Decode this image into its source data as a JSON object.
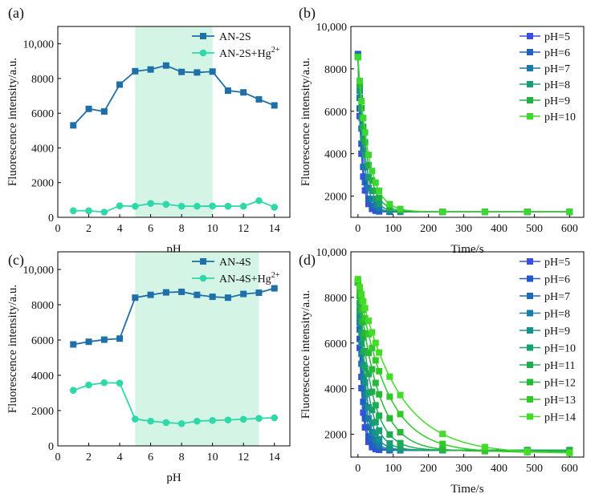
{
  "chart_data": [
    {
      "id": "a",
      "tag": "(a)",
      "type": "line",
      "xlabel": "pH",
      "ylabel": "Fluorescence intensity/a.u.",
      "xlim": [
        0,
        15
      ],
      "ylim": [
        0,
        11000
      ],
      "xticks": [
        0,
        2,
        4,
        6,
        8,
        10,
        12,
        14
      ],
      "yticks": [
        0,
        2000,
        4000,
        6000,
        8000,
        10000
      ],
      "ytick_labels": [
        "0",
        "2000",
        "4000",
        "6000",
        "8000",
        "10,000"
      ],
      "shaded_range": [
        5,
        10
      ],
      "shade_color": "#d4f5e6",
      "legend_position": "top-right",
      "series": [
        {
          "name": "AN-2S",
          "color": "#1f6fa8",
          "marker": "square",
          "x": [
            1,
            2,
            3,
            4,
            5,
            6,
            7,
            8,
            9,
            10,
            11,
            12,
            13,
            14
          ],
          "y": [
            5300,
            6250,
            6100,
            7650,
            8420,
            8520,
            8750,
            8380,
            8350,
            8400,
            7300,
            7200,
            6800,
            6450
          ]
        },
        {
          "name": "AN-2S+Hg",
          "sup": "2+",
          "color": "#2ed8a8",
          "marker": "circle",
          "x": [
            1,
            2,
            3,
            4,
            5,
            6,
            7,
            8,
            9,
            10,
            11,
            12,
            13,
            14
          ],
          "y": [
            380,
            380,
            300,
            660,
            640,
            800,
            750,
            640,
            640,
            650,
            640,
            640,
            960,
            580
          ]
        }
      ]
    },
    {
      "id": "b",
      "tag": "(b)",
      "type": "scatter",
      "fit": "exponential",
      "xlabel": "Time/s",
      "ylabel": "Fluorescence intensity/a.u.",
      "xlim": [
        -20,
        640
      ],
      "ylim": [
        1000,
        10000
      ],
      "xticks": [
        0,
        100,
        200,
        300,
        400,
        500,
        600
      ],
      "yticks": [
        2000,
        4000,
        6000,
        8000,
        10000
      ],
      "ytick_labels": [
        "2000",
        "4000",
        "6000",
        "8000",
        "10,000"
      ],
      "sample_times": [
        0,
        5,
        10,
        15,
        20,
        30,
        40,
        50,
        60,
        90,
        120,
        240,
        360,
        480,
        600
      ],
      "legend_position": "top-right",
      "series": [
        {
          "name": "pH=5",
          "color": "#3a4fe0",
          "y0": 8700,
          "yinf": 1260,
          "tau": 10
        },
        {
          "name": "pH=6",
          "color": "#1f62c0",
          "y0": 8650,
          "yinf": 1260,
          "tau": 12
        },
        {
          "name": "pH=7",
          "color": "#1b7aa8",
          "y0": 8600,
          "yinf": 1260,
          "tau": 16
        },
        {
          "name": "pH=8",
          "color": "#1a9a78",
          "y0": 8580,
          "yinf": 1260,
          "tau": 20
        },
        {
          "name": "pH=9",
          "color": "#22b040",
          "y0": 8560,
          "yinf": 1260,
          "tau": 25
        },
        {
          "name": "pH=10",
          "color": "#3ed630",
          "y0": 8550,
          "yinf": 1260,
          "tau": 30
        }
      ]
    },
    {
      "id": "c",
      "tag": "(c)",
      "type": "line",
      "xlabel": "pH",
      "ylabel": "Fluorescence intensity/a.u.",
      "xlim": [
        0,
        15
      ],
      "ylim": [
        0,
        11000
      ],
      "xticks": [
        0,
        2,
        4,
        6,
        8,
        10,
        12,
        14
      ],
      "yticks": [
        0,
        2000,
        4000,
        6000,
        8000,
        10000
      ],
      "ytick_labels": [
        "0",
        "2000",
        "4000",
        "6000",
        "8000",
        "10,000"
      ],
      "shaded_range": [
        5,
        13
      ],
      "shade_color": "#d4f5e6",
      "legend_position": "top-right",
      "series": [
        {
          "name": "AN-4S",
          "color": "#1f6fa8",
          "marker": "square",
          "x": [
            1,
            2,
            3,
            4,
            5,
            6,
            7,
            8,
            9,
            10,
            11,
            12,
            13,
            14
          ],
          "y": [
            5750,
            5900,
            6020,
            6080,
            8400,
            8560,
            8700,
            8730,
            8560,
            8450,
            8400,
            8610,
            8680,
            8930
          ]
        },
        {
          "name": "AN-4S+Hg",
          "sup": "2+",
          "color": "#2ed8a8",
          "marker": "circle",
          "x": [
            1,
            2,
            3,
            4,
            5,
            6,
            7,
            8,
            9,
            10,
            11,
            12,
            13,
            14
          ],
          "y": [
            3150,
            3450,
            3580,
            3560,
            1520,
            1400,
            1320,
            1260,
            1400,
            1440,
            1470,
            1510,
            1560,
            1590
          ]
        }
      ]
    },
    {
      "id": "d",
      "tag": "(d)",
      "type": "scatter",
      "fit": "exponential",
      "xlabel": "Time/s",
      "ylabel": "Fluorescence intensity/a.u.",
      "xlim": [
        -20,
        640
      ],
      "ylim": [
        1000,
        10000
      ],
      "xticks": [
        0,
        100,
        200,
        300,
        400,
        500,
        600
      ],
      "yticks": [
        2000,
        4000,
        6000,
        8000,
        10000
      ],
      "ytick_labels": [
        "2000",
        "4000",
        "6000",
        "8000",
        "10,000"
      ],
      "sample_times": [
        0,
        5,
        10,
        15,
        20,
        30,
        40,
        50,
        60,
        90,
        120,
        240,
        360,
        480,
        600
      ],
      "legend_position": "top-right",
      "series": [
        {
          "name": "pH=5",
          "color": "#3a4fe0",
          "y0": 8700,
          "yinf": 1300,
          "tau": 10
        },
        {
          "name": "pH=6",
          "color": "#2458cc",
          "y0": 8700,
          "yinf": 1300,
          "tau": 12
        },
        {
          "name": "pH=7",
          "color": "#1e69b8",
          "y0": 8690,
          "yinf": 1300,
          "tau": 15
        },
        {
          "name": "pH=8",
          "color": "#1a7da3",
          "y0": 8680,
          "yinf": 1300,
          "tau": 18
        },
        {
          "name": "pH=9",
          "color": "#18908c",
          "y0": 8670,
          "yinf": 1300,
          "tau": 22
        },
        {
          "name": "pH=10",
          "color": "#19a070",
          "y0": 8660,
          "yinf": 1300,
          "tau": 28
        },
        {
          "name": "pH=11",
          "color": "#1eac52",
          "y0": 8650,
          "yinf": 1300,
          "tau": 38
        },
        {
          "name": "pH=12",
          "color": "#27b838",
          "y0": 8700,
          "yinf": 1250,
          "tau": 55
        },
        {
          "name": "pH=13",
          "color": "#33c82a",
          "y0": 8750,
          "yinf": 1200,
          "tau": 80
        },
        {
          "name": "pH=14",
          "color": "#44dc28",
          "y0": 8800,
          "yinf": 1150,
          "tau": 110
        }
      ]
    }
  ]
}
